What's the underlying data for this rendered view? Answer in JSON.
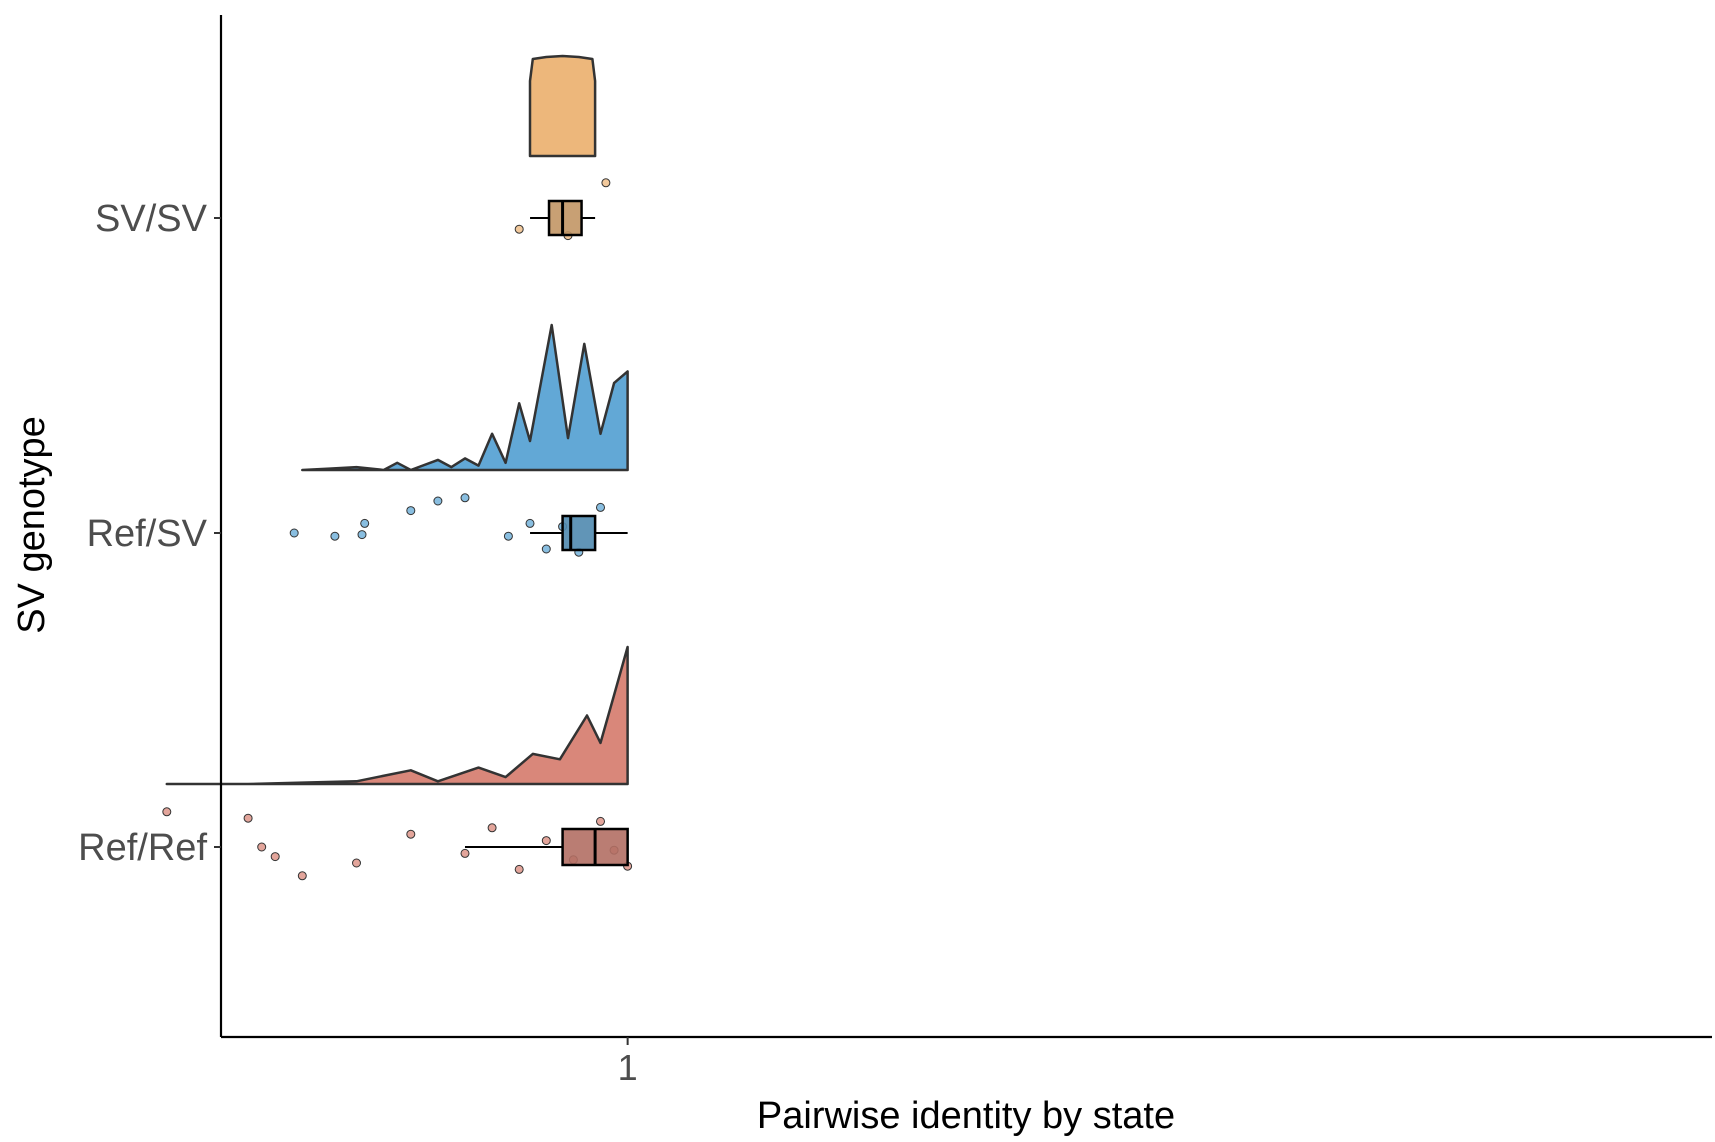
{
  "chart_data": {
    "type": "raincloud",
    "orientation": "horizontal",
    "xlabel": "Pairwise identity by state",
    "ylabel": "SV genotype",
    "x_ticks": [
      1
    ],
    "x_tick_labels": [
      "1"
    ],
    "xlim": [
      0.85,
      1.4
    ],
    "grid": false,
    "legend": "none",
    "categories": [
      "SV/SV",
      "Ref/SV",
      "Ref/Ref"
    ],
    "series": [
      {
        "name": "SV/SV",
        "color": "#EDB77B",
        "box": {
          "whisker_low": 0.964,
          "q1": 0.971,
          "median": 0.976,
          "q3": 0.983,
          "whisker_high": 0.988
        },
        "density": [
          [
            0.964,
            0.75
          ],
          [
            0.965,
            0.97
          ],
          [
            0.97,
            0.99
          ],
          [
            0.976,
            1.0
          ],
          [
            0.982,
            0.99
          ],
          [
            0.987,
            0.97
          ],
          [
            0.988,
            0.75
          ]
        ],
        "points": [
          [
            0.96,
            0.35
          ],
          [
            0.992,
            -1.1
          ],
          [
            0.978,
            0.55
          ]
        ]
      },
      {
        "name": "Ref/SV",
        "color": "#62A8D6",
        "box": {
          "whisker_low": 0.964,
          "q1": 0.976,
          "median": 0.979,
          "q3": 0.988,
          "whisker_high": 1.0
        },
        "density": [
          [
            0.88,
            0.0
          ],
          [
            0.89,
            0.01
          ],
          [
            0.9,
            0.02
          ],
          [
            0.91,
            0.0
          ],
          [
            0.915,
            0.05
          ],
          [
            0.92,
            0.0
          ],
          [
            0.93,
            0.07
          ],
          [
            0.935,
            0.02
          ],
          [
            0.94,
            0.08
          ],
          [
            0.945,
            0.03
          ],
          [
            0.95,
            0.25
          ],
          [
            0.955,
            0.05
          ],
          [
            0.96,
            0.46
          ],
          [
            0.964,
            0.2
          ],
          [
            0.972,
            1.0
          ],
          [
            0.978,
            0.22
          ],
          [
            0.984,
            0.87
          ],
          [
            0.99,
            0.25
          ],
          [
            0.995,
            0.6
          ],
          [
            1.0,
            0.68
          ]
        ],
        "points": [
          [
            0.877,
            0.0
          ],
          [
            0.892,
            0.1
          ],
          [
            0.902,
            0.05
          ],
          [
            0.903,
            -0.3
          ],
          [
            0.92,
            -0.7
          ],
          [
            0.93,
            -1.0
          ],
          [
            0.94,
            -1.1
          ],
          [
            0.956,
            0.1
          ],
          [
            0.964,
            -0.3
          ],
          [
            0.97,
            0.5
          ],
          [
            0.976,
            -0.2
          ],
          [
            0.982,
            0.6
          ],
          [
            0.99,
            -0.8
          ]
        ]
      },
      {
        "name": "Ref/Ref",
        "color": "#D9877A",
        "box": {
          "whisker_low": 0.94,
          "q1": 0.976,
          "median": 0.988,
          "q3": 1.0,
          "whisker_high": 1.0
        },
        "density": [
          [
            0.83,
            0.0
          ],
          [
            0.86,
            0.0
          ],
          [
            0.88,
            0.01
          ],
          [
            0.9,
            0.02
          ],
          [
            0.92,
            0.1
          ],
          [
            0.93,
            0.02
          ],
          [
            0.945,
            0.12
          ],
          [
            0.955,
            0.05
          ],
          [
            0.965,
            0.22
          ],
          [
            0.975,
            0.18
          ],
          [
            0.985,
            0.5
          ],
          [
            0.99,
            0.3
          ],
          [
            0.995,
            0.65
          ],
          [
            1.0,
            1.0
          ]
        ],
        "points": [
          [
            0.83,
            -1.1
          ],
          [
            0.86,
            -0.9
          ],
          [
            0.865,
            0.0
          ],
          [
            0.87,
            0.3
          ],
          [
            0.88,
            0.9
          ],
          [
            0.9,
            0.5
          ],
          [
            0.92,
            -0.4
          ],
          [
            0.94,
            0.2
          ],
          [
            0.95,
            -0.6
          ],
          [
            0.96,
            0.7
          ],
          [
            0.97,
            -0.2
          ],
          [
            0.98,
            0.4
          ],
          [
            0.99,
            -0.8
          ],
          [
            0.995,
            0.1
          ],
          [
            1.0,
            0.6
          ]
        ]
      }
    ]
  }
}
